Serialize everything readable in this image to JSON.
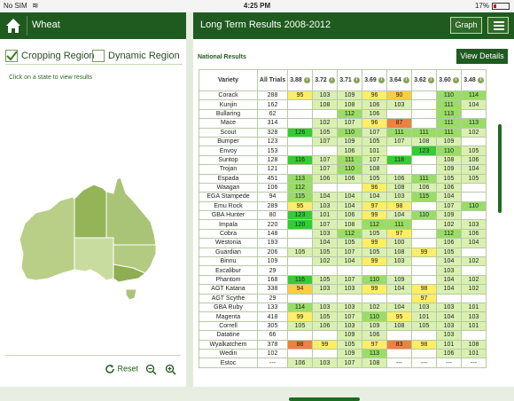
{
  "status": {
    "carrier": "No SIM",
    "time": "4:25 PM",
    "battery": "17%"
  },
  "left": {
    "title": "Wheat",
    "cropping_label": "Cropping Region",
    "dynamic_label": "Dynamic Region",
    "hint": "Click on a state to view results",
    "reset_label": "Reset"
  },
  "right": {
    "title": "Long Term Results 2008-2012",
    "graph_label": "Graph",
    "national_label": "National Results",
    "view_details_label": "View Details"
  },
  "table": {
    "columns": [
      "Variety",
      "All Trials",
      "3.88",
      "3.72",
      "3.71",
      "3.69",
      "3.64",
      "3.62",
      "3.60",
      "3.48"
    ],
    "rows": [
      [
        "Corack",
        "288",
        "95",
        "103",
        "109",
        "96",
        "90",
        "",
        "110",
        "114"
      ],
      [
        "Kunjin",
        "162",
        "",
        "108",
        "108",
        "106",
        "103",
        "",
        "111",
        "104"
      ],
      [
        "Bullaring",
        "62",
        "",
        "",
        "112",
        "106",
        "",
        "",
        "113",
        ""
      ],
      [
        "Mace",
        "314",
        "",
        "102",
        "107",
        "96",
        "87",
        "",
        "111",
        "113"
      ],
      [
        "Scout",
        "328",
        "126",
        "105",
        "110",
        "107",
        "111",
        "111",
        "111",
        "102"
      ],
      [
        "Bumper",
        "123",
        "",
        "107",
        "109",
        "105",
        "107",
        "108",
        "109",
        ""
      ],
      [
        "Envoy",
        "153",
        "",
        "",
        "106",
        "101",
        "",
        "123",
        "110",
        "105"
      ],
      [
        "Suntop",
        "128",
        "116",
        "107",
        "111",
        "107",
        "118",
        "",
        "108",
        "106"
      ],
      [
        "Trojan",
        "121",
        "",
        "107",
        "110",
        "108",
        "",
        "",
        "109",
        "104"
      ],
      [
        "Espada",
        "451",
        "113",
        "106",
        "106",
        "105",
        "106",
        "111",
        "105",
        "105"
      ],
      [
        "Waagan",
        "106",
        "112",
        "",
        "",
        "96",
        "108",
        "106",
        "106",
        ""
      ],
      [
        "EGA Stampede",
        "94",
        "115",
        "104",
        "104",
        "104",
        "103",
        "115",
        "104",
        ""
      ],
      [
        "Emu Rock",
        "289",
        "95",
        "103",
        "104",
        "97",
        "98",
        "",
        "107",
        "110"
      ],
      [
        "GBA Hunter",
        "80",
        "123",
        "101",
        "106",
        "99",
        "104",
        "110",
        "109",
        ""
      ],
      [
        "Impala",
        "220",
        "120",
        "107",
        "108",
        "112",
        "111",
        "",
        "102",
        "103"
      ],
      [
        "Cobra",
        "148",
        "",
        "103",
        "112",
        "105",
        "97",
        "",
        "112",
        "106"
      ],
      [
        "Westonia",
        "193",
        "",
        "104",
        "105",
        "99",
        "100",
        "",
        "106",
        "104"
      ],
      [
        "Guardian",
        "206",
        "105",
        "105",
        "107",
        "105",
        "108",
        "99",
        "105",
        ""
      ],
      [
        "Binnu",
        "109",
        "",
        "102",
        "104",
        "99",
        "103",
        "",
        "104",
        "102"
      ],
      [
        "Excalibur",
        "29",
        "",
        "",
        "",
        "",
        "",
        "",
        "103",
        ""
      ],
      [
        "Phantom",
        "168",
        "116",
        "105",
        "107",
        "110",
        "109",
        "",
        "104",
        "102"
      ],
      [
        "AGT Katana",
        "338",
        "94",
        "103",
        "103",
        "99",
        "104",
        "98",
        "104",
        "102"
      ],
      [
        "AGT Scythe",
        "29",
        "",
        "",
        "",
        "",
        "",
        "97",
        "",
        ""
      ],
      [
        "GBA Ruby",
        "133",
        "114",
        "103",
        "103",
        "102",
        "104",
        "103",
        "103",
        "101"
      ],
      [
        "Magenta",
        "418",
        "99",
        "105",
        "107",
        "110",
        "95",
        "101",
        "104",
        "103"
      ],
      [
        "Correll",
        "305",
        "105",
        "106",
        "103",
        "109",
        "108",
        "105",
        "103",
        "101"
      ],
      [
        "Datatine",
        "66",
        "",
        "",
        "109",
        "106",
        "",
        "",
        "103",
        ""
      ],
      [
        "Wyalkatchem",
        "378",
        "88",
        "99",
        "105",
        "97",
        "83",
        "98",
        "101",
        "108"
      ],
      [
        "Wedin",
        "102",
        "",
        "",
        "109",
        "113",
        "",
        "",
        "106",
        "101"
      ],
      [
        "Estoc",
        "---",
        "106",
        "103",
        "107",
        "108",
        "---",
        "---",
        "---",
        "---"
      ]
    ]
  },
  "colors": {
    "header_green": "#1f5b1f",
    "high": "#33cc33",
    "good": "#99dd66",
    "mid": "#d9f0b0",
    "low": "#ffee66",
    "lower": "#ffcc44",
    "lowest": "#f08040"
  }
}
